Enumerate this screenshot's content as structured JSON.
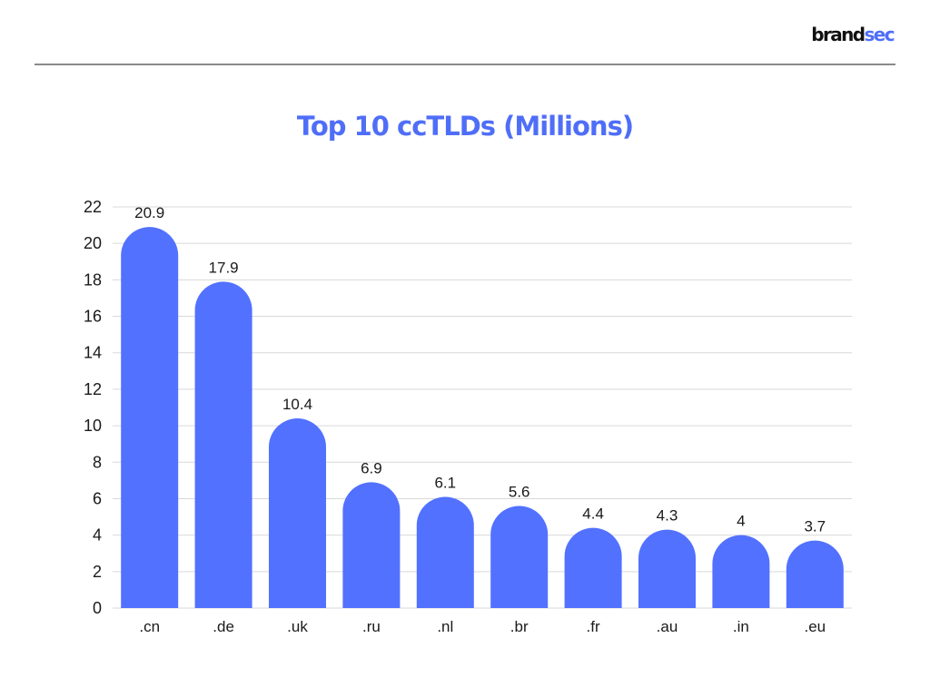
{
  "header": {
    "logo_part1": "brand",
    "logo_part2": "sec"
  },
  "colors": {
    "accent": "#4f6ef7",
    "bar": "#5271ff",
    "grid": "#d9d9d9",
    "divider": "#8a8a8a"
  },
  "chart_data": {
    "type": "bar",
    "title": "Top 10 ccTLDs (Millions)",
    "xlabel": "",
    "ylabel": "",
    "categories": [
      ".cn",
      ".de",
      ".uk",
      ".ru",
      ".nl",
      ".br",
      ".fr",
      ".au",
      ".in",
      ".eu"
    ],
    "values": [
      20.9,
      17.9,
      10.4,
      6.9,
      6.1,
      5.6,
      4.4,
      4.3,
      4,
      3.7
    ],
    "data_labels": [
      "20.9",
      "17.9",
      "10.4",
      "6.9",
      "6.1",
      "5.6",
      "4.4",
      "4.3",
      "4",
      "3.7"
    ],
    "ylim": [
      0,
      22
    ],
    "yticks": [
      "0",
      "2",
      "4",
      "6",
      "8",
      "10",
      "12",
      "14",
      "16",
      "18",
      "20",
      "22"
    ],
    "grid": true,
    "legend": "none"
  }
}
